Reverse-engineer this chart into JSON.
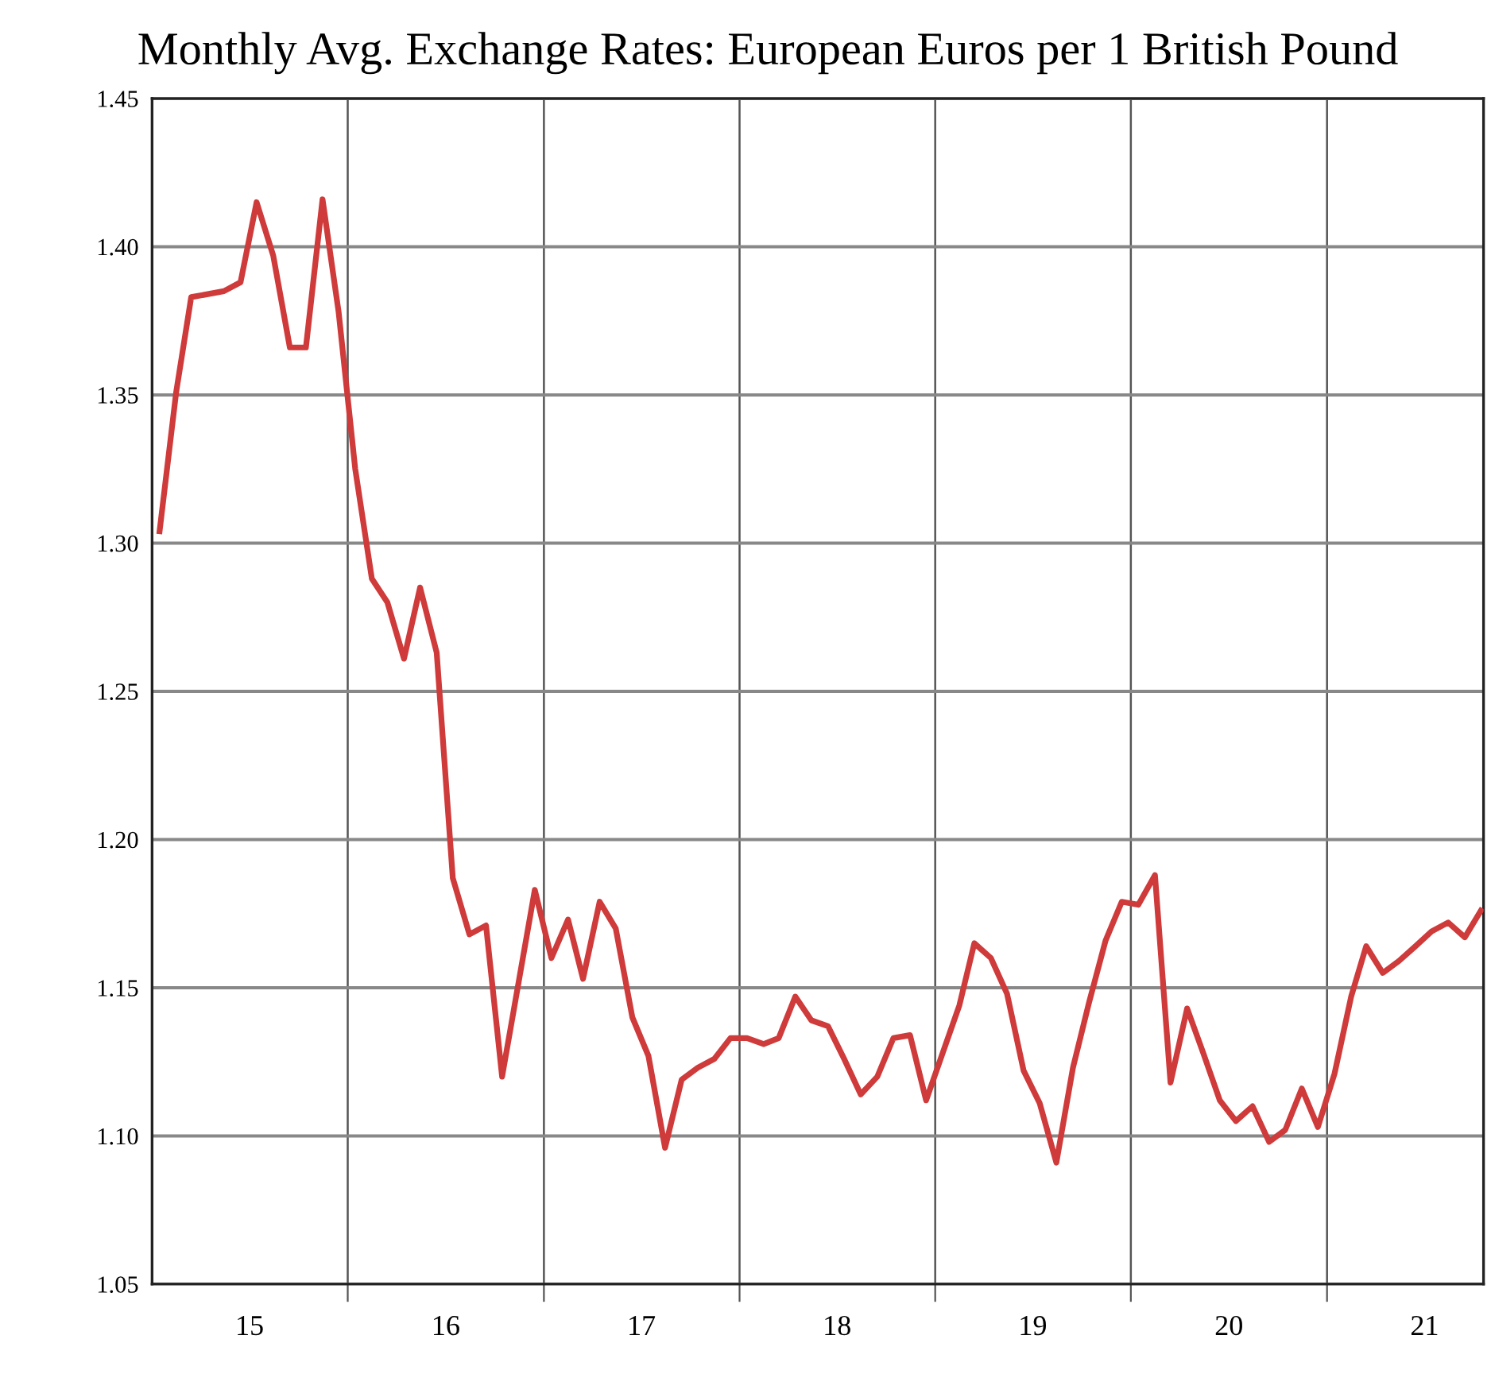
{
  "chart_data": {
    "type": "line",
    "title": "Monthly Avg. Exchange Rates: European Euros per 1 British Pound",
    "x": [
      "2015-01-15",
      "2015-02-15",
      "2015-03-15",
      "2015-04-15",
      "2015-05-15",
      "2015-06-15",
      "2015-07-15",
      "2015-08-15",
      "2015-09-15",
      "2015-10-15",
      "2015-11-15",
      "2015-12-15",
      "2016-01-15",
      "2016-02-15",
      "2016-03-15",
      "2016-04-15",
      "2016-05-15",
      "2016-06-15",
      "2016-07-15",
      "2016-08-15",
      "2016-09-15",
      "2016-10-15",
      "2016-11-15",
      "2016-12-15",
      "2017-01-15",
      "2017-02-15",
      "2017-03-15",
      "2017-04-15",
      "2017-05-15",
      "2017-06-15",
      "2017-07-15",
      "2017-08-15",
      "2017-09-15",
      "2017-10-15",
      "2017-11-15",
      "2017-12-15",
      "2018-01-15",
      "2018-02-15",
      "2018-03-15",
      "2018-04-15",
      "2018-05-15",
      "2018-06-15",
      "2018-07-15",
      "2018-08-15",
      "2018-09-15",
      "2018-10-15",
      "2018-11-15",
      "2018-12-15",
      "2019-01-15",
      "2019-02-15",
      "2019-03-15",
      "2019-04-15",
      "2019-05-15",
      "2019-06-15",
      "2019-07-15",
      "2019-08-15",
      "2019-09-15",
      "2019-10-15",
      "2019-11-15",
      "2019-12-15",
      "2020-01-15",
      "2020-02-15",
      "2020-03-15",
      "2020-04-15",
      "2020-05-15",
      "2020-06-15",
      "2020-07-15",
      "2020-08-15",
      "2020-09-15",
      "2020-10-15",
      "2020-11-15",
      "2020-12-15",
      "2021-01-15",
      "2021-02-15",
      "2021-03-15",
      "2021-04-15",
      "2021-05-15",
      "2021-06-15",
      "2021-07-15",
      "2021-08-15",
      "2021-09-15",
      "2021-10-15"
    ],
    "series": [
      {
        "color": "#cf3a3a",
        "values": [
          1.304,
          1.351,
          1.383,
          1.384,
          1.385,
          1.388,
          1.415,
          1.397,
          1.366,
          1.366,
          1.416,
          1.378,
          1.325,
          1.288,
          1.28,
          1.261,
          1.285,
          1.263,
          1.187,
          1.168,
          1.171,
          1.12,
          1.152,
          1.183,
          1.16,
          1.173,
          1.153,
          1.179,
          1.17,
          1.14,
          1.127,
          1.096,
          1.119,
          1.123,
          1.126,
          1.133,
          1.133,
          1.131,
          1.133,
          1.147,
          1.139,
          1.137,
          1.126,
          1.114,
          1.12,
          1.133,
          1.134,
          1.112,
          1.128,
          1.144,
          1.165,
          1.16,
          1.148,
          1.122,
          1.111,
          1.091,
          1.123,
          1.145,
          1.166,
          1.179,
          1.178,
          1.188,
          1.118,
          1.143,
          1.128,
          1.112,
          1.105,
          1.11,
          1.098,
          1.102,
          1.116,
          1.103,
          1.121,
          1.147,
          1.164,
          1.155,
          1.159,
          1.164,
          1.169,
          1.172,
          1.167,
          1.176
        ]
      }
    ],
    "xlim": [
      "2015-01-01",
      "2021-10-20"
    ],
    "xticks": [
      {
        "value": "2015-07-02",
        "label": "15"
      },
      {
        "value": "2016-01-01",
        "label": null
      },
      {
        "value": "2016-07-02",
        "label": "16"
      },
      {
        "value": "2017-01-01",
        "label": null
      },
      {
        "value": "2017-07-02",
        "label": "17"
      },
      {
        "value": "2018-01-01",
        "label": null
      },
      {
        "value": "2018-07-02",
        "label": "18"
      },
      {
        "value": "2019-01-01",
        "label": null
      },
      {
        "value": "2019-07-02",
        "label": "19"
      },
      {
        "value": "2020-01-01",
        "label": null
      },
      {
        "value": "2020-07-02",
        "label": "20"
      },
      {
        "value": "2021-01-01",
        "label": null
      },
      {
        "value": "2021-07-02",
        "label": "21"
      }
    ],
    "ylim": [
      1.05,
      1.45
    ],
    "yticks": [
      {
        "value": 1.05,
        "label": "1.05"
      },
      {
        "value": 1.1,
        "label": "1.10"
      },
      {
        "value": 1.15,
        "label": "1.15"
      },
      {
        "value": 1.2,
        "label": "1.20"
      },
      {
        "value": 1.25,
        "label": "1.25"
      },
      {
        "value": 1.3,
        "label": "1.30"
      },
      {
        "value": 1.35,
        "label": "1.35"
      },
      {
        "value": 1.4,
        "label": "1.40"
      },
      {
        "value": 1.45,
        "label": "1.45"
      }
    ],
    "grid": true,
    "marker": "none",
    "line_style": "solid"
  }
}
